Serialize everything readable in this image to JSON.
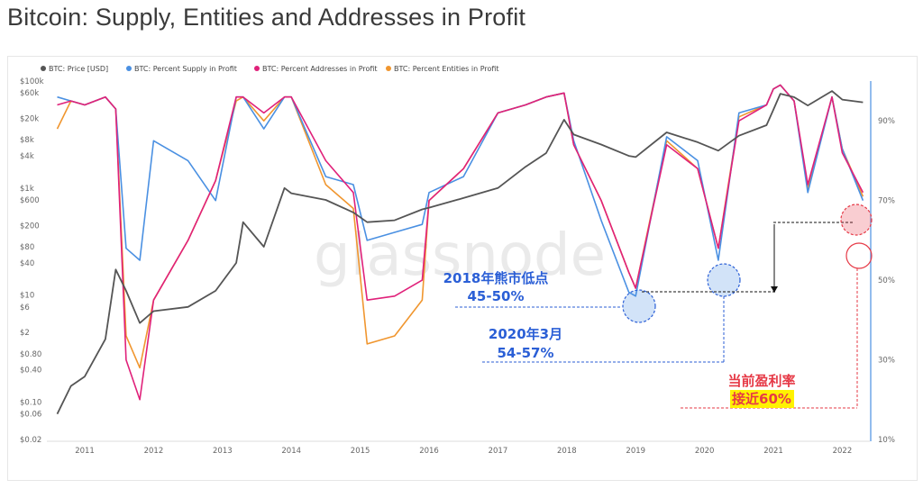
{
  "page": {
    "title": "Bitcoin: Supply, Entities and Addresses in Profit"
  },
  "colors": {
    "price": "#555555",
    "supply": "#4a90e2",
    "addresses": "#e0217a",
    "entities": "#f0962f",
    "accent_blue": "#2b5fd6",
    "accent_red": "#e63946"
  },
  "chart_data": {
    "type": "line",
    "title": "Bitcoin: Supply, Entities and Addresses in Profit",
    "watermark": "glassnode",
    "legend_position": "top-left",
    "grid": false,
    "x_ticks": [
      "2011",
      "2012",
      "2013",
      "2014",
      "2015",
      "2016",
      "2017",
      "2018",
      "2019",
      "2020",
      "2021",
      "2022"
    ],
    "y_left": {
      "scale": "log",
      "ticks": [
        "$100k",
        "$60k",
        "$20k",
        "$8k",
        "$4k",
        "$1k",
        "$600",
        "$200",
        "$80",
        "$40",
        "$10",
        "$6",
        "$2",
        "$0.80",
        "$0.40",
        "$0.10",
        "$0.06",
        "$0.02"
      ],
      "range": [
        0.02,
        100000
      ]
    },
    "y_right": {
      "ticks": [
        "90%",
        "70%",
        "50%",
        "30%",
        "10%"
      ],
      "range": [
        10,
        100
      ]
    },
    "series": [
      {
        "name": "BTC: Price [USD]",
        "axis": "left",
        "x": [
          2010.6,
          2010.8,
          2011.0,
          2011.3,
          2011.45,
          2011.6,
          2011.8,
          2012.0,
          2012.5,
          2012.9,
          2013.2,
          2013.3,
          2013.6,
          2013.9,
          2014.0,
          2014.5,
          2014.9,
          2015.1,
          2015.5,
          2015.9,
          2016.0,
          2016.5,
          2017.0,
          2017.4,
          2017.7,
          2017.96,
          2018.1,
          2018.5,
          2018.9,
          2019.0,
          2019.45,
          2019.9,
          2020.2,
          2020.5,
          2020.9,
          2021.0,
          2021.1,
          2021.3,
          2021.5,
          2021.85,
          2022.0,
          2022.3
        ],
        "values": [
          0.06,
          0.2,
          0.3,
          1.5,
          30,
          12,
          3,
          5,
          6,
          12,
          40,
          230,
          80,
          1000,
          800,
          600,
          350,
          230,
          250,
          400,
          430,
          650,
          1000,
          2500,
          4500,
          19000,
          10000,
          6500,
          4000,
          3800,
          11000,
          7200,
          5000,
          9500,
          15000,
          29000,
          58000,
          50000,
          35000,
          65000,
          45000,
          40000
        ]
      },
      {
        "name": "BTC: Percent Supply in Profit",
        "axis": "right",
        "x": [
          2010.6,
          2010.8,
          2011.0,
          2011.3,
          2011.45,
          2011.6,
          2011.8,
          2012.0,
          2012.5,
          2012.9,
          2013.2,
          2013.3,
          2013.6,
          2013.9,
          2014.0,
          2014.5,
          2014.9,
          2015.1,
          2015.5,
          2015.9,
          2016.0,
          2016.5,
          2017.0,
          2017.4,
          2017.7,
          2017.96,
          2018.1,
          2018.5,
          2018.9,
          2019.0,
          2019.45,
          2019.9,
          2020.2,
          2020.5,
          2020.9,
          2021.0,
          2021.1,
          2021.3,
          2021.5,
          2021.85,
          2022.0,
          2022.3
        ],
        "values": [
          96,
          95,
          94,
          96,
          93,
          58,
          55,
          85,
          80,
          70,
          96,
          96,
          88,
          96,
          96,
          76,
          74,
          60,
          62,
          64,
          72,
          76,
          92,
          94,
          96,
          97,
          85,
          65,
          47,
          46,
          86,
          80,
          55,
          92,
          94,
          98,
          99,
          95,
          72,
          96,
          83,
          70
        ]
      },
      {
        "name": "BTC: Percent Addresses in Profit",
        "axis": "right",
        "x": [
          2010.6,
          2010.8,
          2011.0,
          2011.3,
          2011.45,
          2011.6,
          2011.8,
          2012.0,
          2012.5,
          2012.9,
          2013.2,
          2013.3,
          2013.6,
          2013.9,
          2014.0,
          2014.5,
          2014.9,
          2015.1,
          2015.5,
          2015.9,
          2016.0,
          2016.5,
          2017.0,
          2017.4,
          2017.7,
          2017.96,
          2018.1,
          2018.5,
          2018.9,
          2019.0,
          2019.45,
          2019.9,
          2020.2,
          2020.5,
          2020.9,
          2021.0,
          2021.1,
          2021.3,
          2021.5,
          2021.85,
          2022.0,
          2022.3
        ],
        "values": [
          94,
          95,
          94,
          96,
          93,
          30,
          20,
          45,
          60,
          75,
          96,
          96,
          92,
          96,
          96,
          80,
          72,
          45,
          46,
          50,
          70,
          78,
          92,
          94,
          96,
          97,
          84,
          70,
          52,
          48,
          84,
          78,
          58,
          90,
          94,
          98,
          99,
          95,
          74,
          96,
          82,
          72
        ]
      },
      {
        "name": "BTC: Percent Entities in Profit",
        "axis": "right",
        "x": [
          2010.6,
          2010.8,
          2011.0,
          2011.3,
          2011.45,
          2011.6,
          2011.8,
          2012.0,
          2012.5,
          2012.9,
          2013.2,
          2013.3,
          2013.6,
          2013.9,
          2014.0,
          2014.5,
          2014.9,
          2015.1,
          2015.5,
          2015.9,
          2016.0,
          2016.5,
          2017.0,
          2017.4,
          2017.7,
          2017.96,
          2018.1,
          2018.5,
          2018.9,
          2019.0,
          2019.45,
          2019.9,
          2020.2,
          2020.5,
          2020.9,
          2021.0,
          2021.1,
          2021.3,
          2021.5,
          2021.85,
          2022.0,
          2022.3
        ],
        "values": [
          88,
          95,
          94,
          96,
          93,
          36,
          28,
          45,
          60,
          75,
          95,
          96,
          90,
          96,
          96,
          74,
          68,
          34,
          36,
          45,
          70,
          78,
          92,
          94,
          96,
          97,
          84,
          70,
          52,
          48,
          85,
          78,
          58,
          91,
          94,
          98,
          99,
          95,
          73,
          96,
          83,
          71
        ]
      }
    ],
    "annotations": [
      {
        "id": "bear_2018_label",
        "text": "2018年熊市低点",
        "color": "#2b5fd6"
      },
      {
        "id": "bear_2018_value",
        "text": "45-50%",
        "color": "#2b5fd6"
      },
      {
        "id": "mar_2020_label",
        "text": "2020年3月",
        "color": "#2b5fd6"
      },
      {
        "id": "mar_2020_value",
        "text": "54-57%",
        "color": "#2b5fd6"
      },
      {
        "id": "current_label",
        "text": "当前盈利率",
        "color": "#e63946"
      },
      {
        "id": "current_value",
        "text": "接近60%",
        "color": "#e63946",
        "highlight": "#fff200"
      }
    ]
  }
}
